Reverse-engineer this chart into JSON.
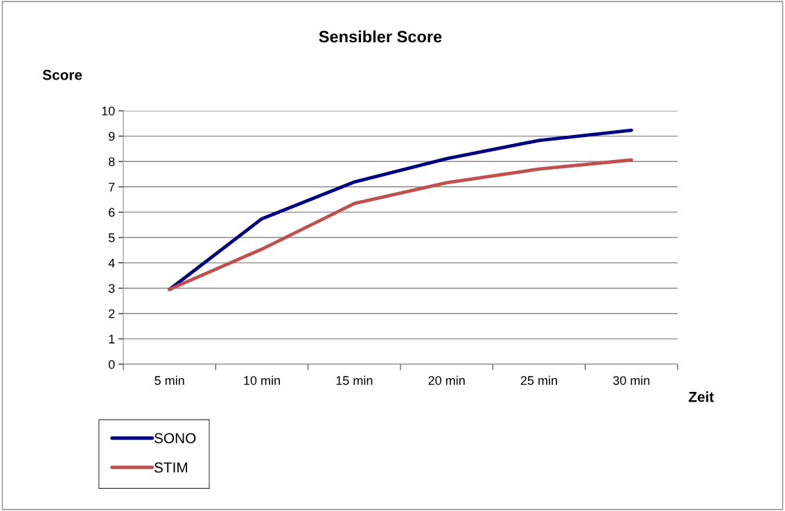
{
  "chart_data": {
    "type": "line",
    "title": "Sensibler Score",
    "xlabel": "Zeit",
    "ylabel": "Score",
    "categories": [
      "5 min",
      "10 min",
      "15 min",
      "20 min",
      "25 min",
      "30 min"
    ],
    "series": [
      {
        "name": "SONO",
        "color": "#000080",
        "values": [
          2.95,
          5.74,
          7.19,
          8.11,
          8.83,
          9.23
        ]
      },
      {
        "name": "STIM",
        "color": "#c0504d",
        "values": [
          2.95,
          4.54,
          6.34,
          7.16,
          7.7,
          8.06
        ]
      }
    ],
    "ylim": [
      0,
      10
    ],
    "yticks": [
      0,
      1,
      2,
      3,
      4,
      5,
      6,
      7,
      8,
      9,
      10
    ],
    "grid": "y",
    "legend": "bottom left",
    "marker": "none",
    "line_style": "solid"
  }
}
